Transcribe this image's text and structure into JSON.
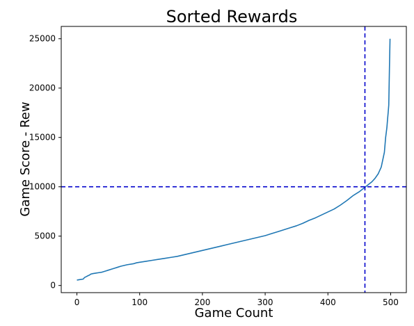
{
  "chart_data": {
    "type": "line",
    "title": "Sorted Rewards",
    "xlabel": "Game Count",
    "ylabel": "Game Score - Rew",
    "xlim": [
      -25,
      525
    ],
    "ylim": [
      -725,
      26250
    ],
    "xticks": [
      0,
      100,
      200,
      300,
      400,
      500
    ],
    "yticks": [
      0,
      5000,
      10000,
      15000,
      20000,
      25000
    ],
    "grid": false,
    "legend": "none",
    "series": [
      {
        "color": "#1f77b4",
        "x": [
          0,
          5,
          10,
          12,
          15,
          18,
          20,
          22,
          25,
          30,
          35,
          40,
          45,
          50,
          55,
          60,
          65,
          70,
          80,
          90,
          95,
          100,
          110,
          120,
          130,
          140,
          150,
          160,
          170,
          180,
          190,
          200,
          210,
          220,
          230,
          240,
          250,
          260,
          270,
          280,
          290,
          300,
          310,
          320,
          330,
          340,
          350,
          360,
          370,
          380,
          390,
          400,
          410,
          420,
          430,
          440,
          450,
          455,
          460,
          465,
          470,
          475,
          480,
          485,
          487,
          490,
          492,
          494,
          495,
          496,
          497,
          498,
          499
        ],
        "y": [
          550,
          600,
          650,
          800,
          900,
          1000,
          1050,
          1150,
          1200,
          1250,
          1300,
          1350,
          1450,
          1550,
          1650,
          1750,
          1850,
          1950,
          2100,
          2200,
          2300,
          2350,
          2450,
          2550,
          2650,
          2750,
          2850,
          2950,
          3100,
          3250,
          3400,
          3550,
          3700,
          3850,
          4000,
          4150,
          4300,
          4450,
          4600,
          4750,
          4900,
          5050,
          5250,
          5450,
          5650,
          5850,
          6050,
          6300,
          6600,
          6850,
          7150,
          7450,
          7750,
          8150,
          8600,
          9100,
          9500,
          9750,
          10000,
          10250,
          10500,
          10850,
          11300,
          12000,
          12600,
          13500,
          15000,
          16000,
          16800,
          17500,
          18300,
          21800,
          25000
        ]
      }
    ],
    "reference_lines": [
      {
        "orientation": "horizontal",
        "value": 10000,
        "color": "#0000cc",
        "style": "dashed"
      },
      {
        "orientation": "vertical",
        "value": 459,
        "color": "#0000cc",
        "style": "dashed"
      }
    ]
  }
}
